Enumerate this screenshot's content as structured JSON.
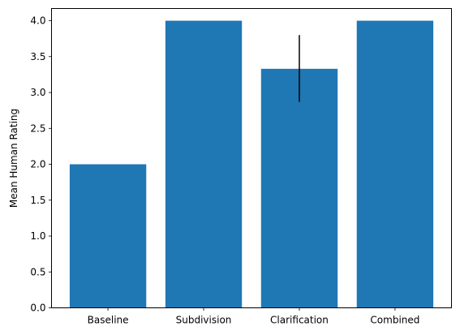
{
  "chart_data": {
    "type": "bar",
    "title": "",
    "xlabel": "",
    "ylabel": "Mean Human Rating",
    "categories": [
      "Baseline",
      "Subdivision",
      "Clarification",
      "Combined"
    ],
    "values": [
      2.0,
      4.0,
      3.33,
      4.0
    ],
    "error_bars": [
      null,
      null,
      [
        2.87,
        3.8
      ],
      null
    ],
    "ylim": [
      0,
      4.17
    ],
    "yticks": [
      "0.0",
      "0.5",
      "1.0",
      "1.5",
      "2.0",
      "2.5",
      "3.0",
      "3.5",
      "4.0"
    ],
    "grid": false,
    "bar_color": "#1f77b4",
    "error_color": "#000000"
  }
}
